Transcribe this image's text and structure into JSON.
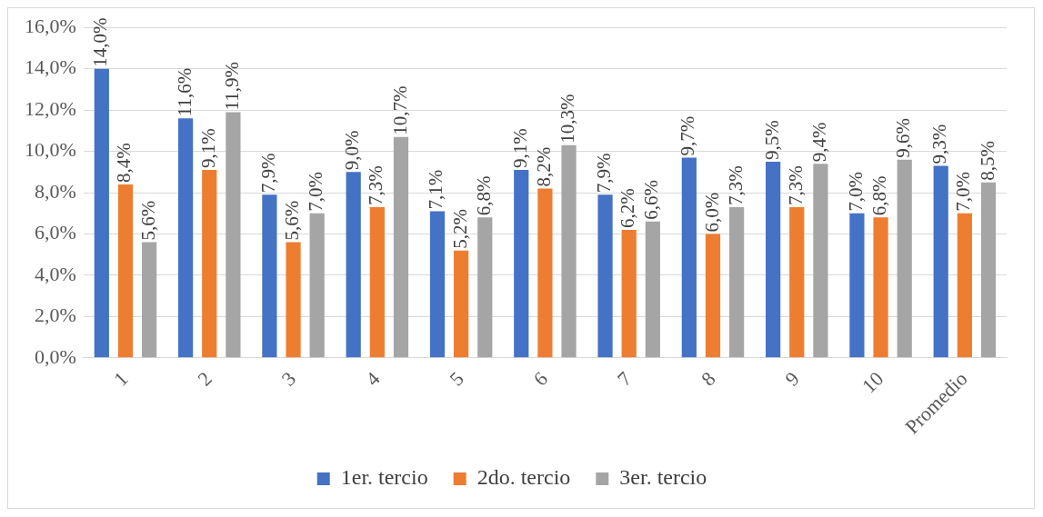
{
  "chart_data": {
    "type": "bar",
    "categories": [
      "1",
      "2",
      "3",
      "4",
      "5",
      "6",
      "7",
      "8",
      "9",
      "10",
      "Promedio"
    ],
    "series": [
      {
        "name": "1er. tercio",
        "color": "#4472c4",
        "values": [
          14.0,
          11.6,
          7.9,
          9.0,
          7.1,
          9.1,
          7.9,
          9.7,
          9.5,
          7.0,
          9.3
        ],
        "value_labels": [
          "14,0%",
          "11,6%",
          "7,9%",
          "9,0%",
          "7,1%",
          "9,1%",
          "7,9%",
          "9,7%",
          "9,5%",
          "7,0%",
          "9,3%"
        ]
      },
      {
        "name": "2do. tercio",
        "color": "#ed7d31",
        "values": [
          8.4,
          9.1,
          5.6,
          7.3,
          5.2,
          8.2,
          6.2,
          6.0,
          7.3,
          6.8,
          7.0
        ],
        "value_labels": [
          "8,4%",
          "9,1%",
          "5,6%",
          "7,3%",
          "5,2%",
          "8,2%",
          "6,2%",
          "6,0%",
          "7,3%",
          "6,8%",
          "7,0%"
        ]
      },
      {
        "name": "3er. tercio",
        "color": "#a5a5a5",
        "values": [
          5.6,
          11.9,
          7.0,
          10.7,
          6.8,
          10.3,
          6.6,
          7.3,
          9.4,
          9.6,
          8.5
        ],
        "value_labels": [
          "5,6%",
          "11,9%",
          "7,0%",
          "10,7%",
          "6,8%",
          "10,3%",
          "6,6%",
          "7,3%",
          "9,4%",
          "9,6%",
          "8,5%"
        ]
      }
    ],
    "ylim": [
      0,
      16
    ],
    "yticks": [
      {
        "value": 0,
        "label": "0,0%"
      },
      {
        "value": 2,
        "label": "2,0%"
      },
      {
        "value": 4,
        "label": "4,0%"
      },
      {
        "value": 6,
        "label": "6,0%"
      },
      {
        "value": 8,
        "label": "8,0%"
      },
      {
        "value": 10,
        "label": "10,0%"
      },
      {
        "value": 12,
        "label": "12,0%"
      },
      {
        "value": 14,
        "label": "14,0%"
      },
      {
        "value": 16,
        "label": "16,0%"
      }
    ],
    "grid": "y",
    "legend": "bottom"
  }
}
